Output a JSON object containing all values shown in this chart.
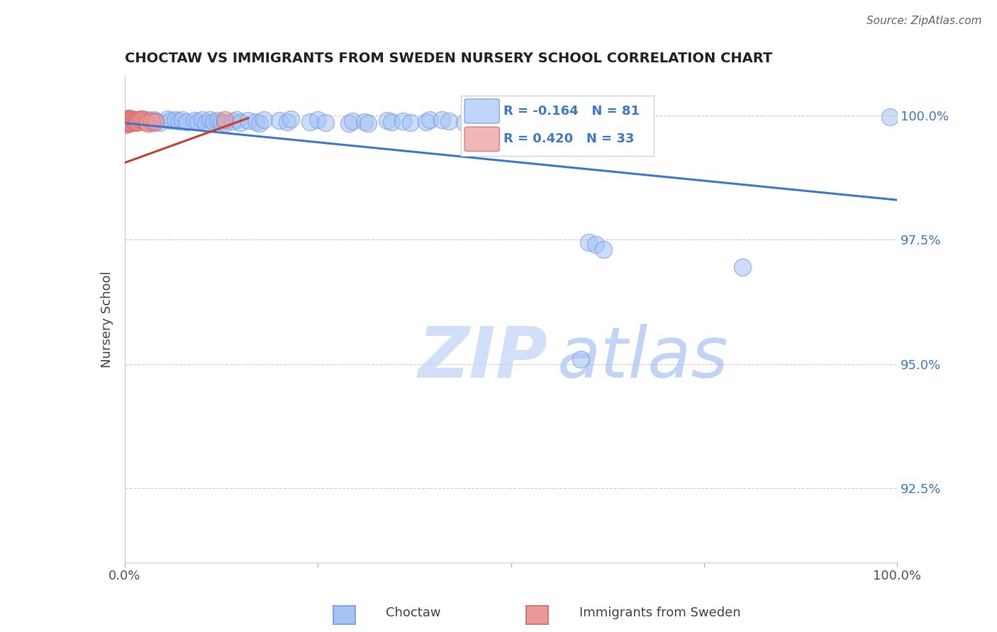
{
  "title": "CHOCTAW VS IMMIGRANTS FROM SWEDEN NURSERY SCHOOL CORRELATION CHART",
  "source": "Source: ZipAtlas.com",
  "ylabel": "Nursery School",
  "ytick_labels": [
    "100.0%",
    "97.5%",
    "95.0%",
    "92.5%"
  ],
  "ytick_values": [
    1.0,
    0.975,
    0.95,
    0.925
  ],
  "legend_blue_r": "R = -0.164",
  "legend_blue_n": "N = 81",
  "legend_pink_r": "R = 0.420",
  "legend_pink_n": "N = 33",
  "blue_color": "#a4c2f4",
  "pink_color": "#ea9999",
  "blue_edge_color": "#6d9eeb",
  "pink_edge_color": "#e06666",
  "blue_line_color": "#3c78d8",
  "pink_line_color": "#cc4125",
  "watermark_zip": "ZIP",
  "watermark_atlas": "atlas",
  "xlim": [
    0.0,
    1.0
  ],
  "ylim": [
    0.91,
    1.008
  ],
  "blue_trend_x0": 0.0,
  "blue_trend_y0": 0.9985,
  "blue_trend_x1": 1.0,
  "blue_trend_y1": 0.983,
  "pink_trend_x0": 0.0,
  "pink_trend_y0": 0.9905,
  "pink_trend_x1": 0.16,
  "pink_trend_y1": 0.9995
}
